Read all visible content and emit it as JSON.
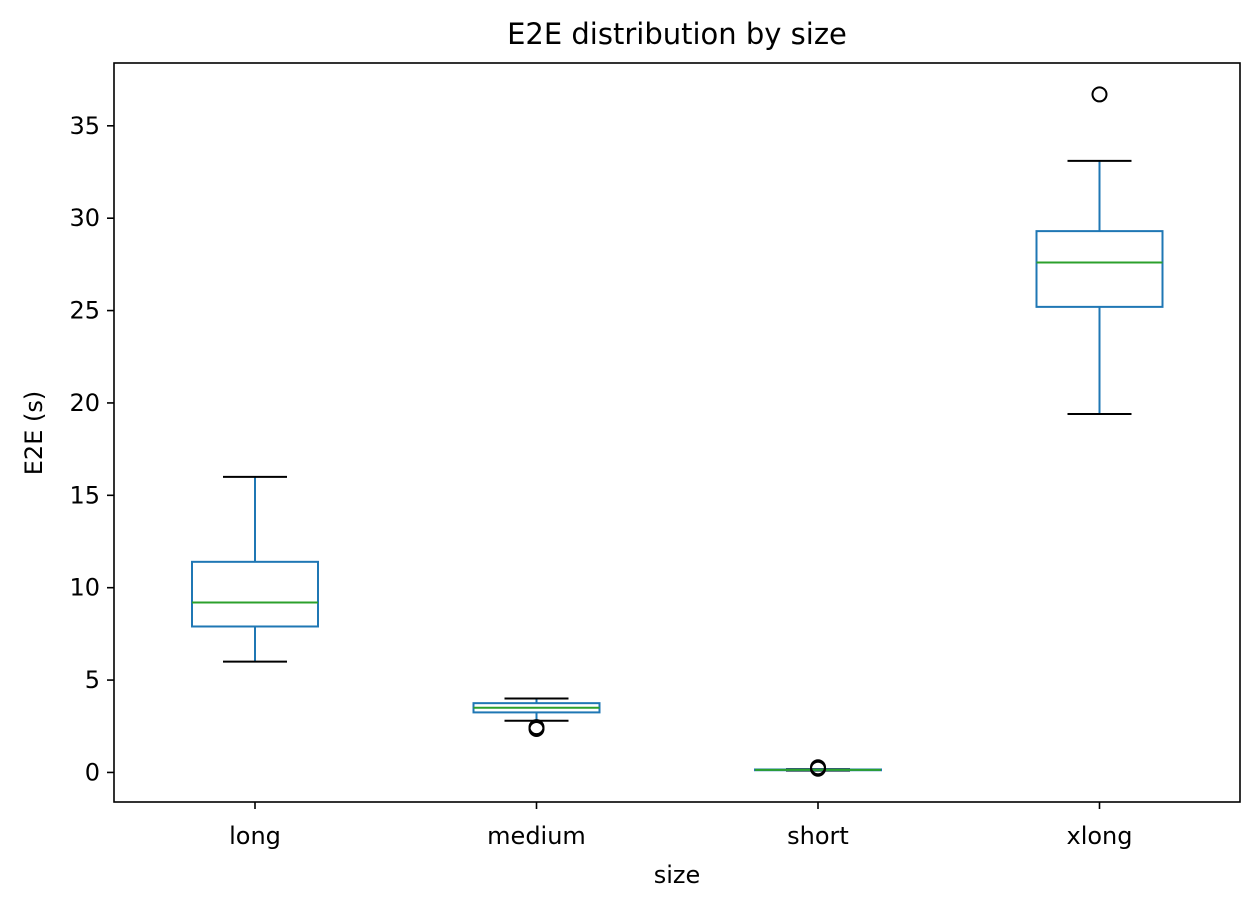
{
  "chart_data": {
    "type": "box",
    "title": "E2E distribution by size",
    "xlabel": "size",
    "ylabel": "E2E (s)",
    "categories": [
      "long",
      "medium",
      "short",
      "xlong"
    ],
    "ylim": [
      -1.6,
      38.4
    ],
    "yticks": [
      0,
      5,
      10,
      15,
      20,
      25,
      30,
      35
    ],
    "grid": false,
    "boxes": [
      {
        "category": "long",
        "whislo": 6.0,
        "q1": 7.9,
        "median": 9.2,
        "q3": 11.4,
        "whishi": 16.0,
        "fliers": []
      },
      {
        "category": "medium",
        "whislo": 2.8,
        "q1": 3.25,
        "median": 3.5,
        "q3": 3.75,
        "whishi": 4.0,
        "fliers": [
          2.35,
          2.45
        ]
      },
      {
        "category": "short",
        "whislo": 0.1,
        "q1": 0.12,
        "median": 0.14,
        "q3": 0.16,
        "whishi": 0.18,
        "fliers": [
          0.2,
          0.28
        ]
      },
      {
        "category": "xlong",
        "whislo": 19.4,
        "q1": 25.2,
        "median": 27.6,
        "q3": 29.3,
        "whishi": 33.1,
        "fliers": [
          36.7
        ]
      }
    ],
    "colors": {
      "box": "#1f77b4",
      "median": "#2ca02c",
      "cap": "#000000",
      "flier": "#000000"
    }
  }
}
